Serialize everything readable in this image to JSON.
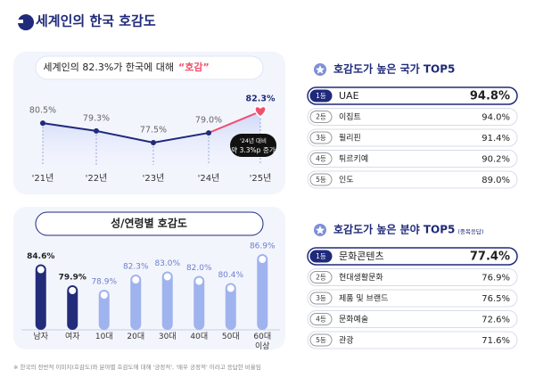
{
  "header": {
    "title": "세계인의 한국 호감도"
  },
  "chart_data": [
    {
      "type": "line",
      "title": "세계인의 82.3%가 한국에 대해",
      "title_highlight": "“호감”",
      "categories": [
        "'21년",
        "'22년",
        "'23년",
        "'24년",
        "'25년"
      ],
      "values": [
        80.5,
        79.3,
        77.5,
        79.0,
        82.3
      ],
      "value_labels": [
        "80.5%",
        "79.3%",
        "77.5%",
        "79.0%",
        "82.3%"
      ],
      "color": "#1f2a7a",
      "highlight_color": "#f0506e",
      "annotation": [
        "'24년 대비",
        "약 3.3%p 증가"
      ]
    },
    {
      "type": "bar",
      "title": "성/연령별 호감도",
      "categories": [
        "남자",
        "여자",
        "10대",
        "20대",
        "30대",
        "40대",
        "50대",
        "60대 이상"
      ],
      "values": [
        84.6,
        79.9,
        78.9,
        82.3,
        83.0,
        82.0,
        80.4,
        86.9
      ],
      "value_labels": [
        "84.6%",
        "79.9%",
        "78.9%",
        "82.3%",
        "83.0%",
        "82.0%",
        "80.4%",
        "86.9%"
      ],
      "colors": [
        "#232c7a",
        "#232c7a",
        "#9fb3ee",
        "#9fb3ee",
        "#9fb3ee",
        "#9fb3ee",
        "#9fb3ee",
        "#9fb3ee"
      ]
    }
  ],
  "rankings": [
    {
      "title": "호감도가 높은 국가 TOP5",
      "rows": [
        [
          "1등",
          "UAE",
          "94.8%"
        ],
        [
          "2등",
          "이집트",
          "94.0%"
        ],
        [
          "3등",
          "필리핀",
          "91.4%"
        ],
        [
          "4등",
          "튀르키예",
          "90.2%"
        ],
        [
          "5등",
          "인도",
          "89.0%"
        ]
      ]
    },
    {
      "title": "호감도가 높은 분야 TOP5",
      "note": "(중복응답)",
      "rows": [
        [
          "1등",
          "문화콘텐츠",
          "77.4%"
        ],
        [
          "2등",
          "현대생활문화",
          "76.9%"
        ],
        [
          "3등",
          "제품 및 브랜드",
          "76.5%"
        ],
        [
          "4등",
          "문화예술",
          "72.6%"
        ],
        [
          "5등",
          "관광",
          "71.6%"
        ]
      ]
    }
  ],
  "footnote": "※ 한국의 전반적 이미지(호감도)와 분야별 호감도에 대해 '긍정적', '매우 긍정적' 이라고 응답한 비율임"
}
